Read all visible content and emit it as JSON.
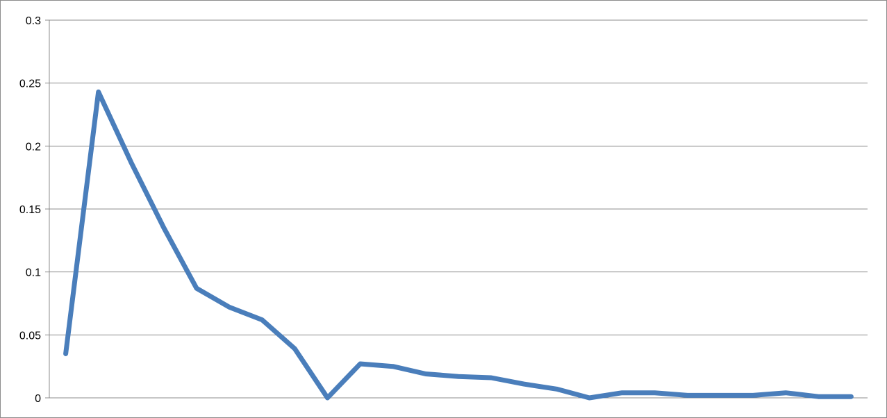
{
  "chart_data": {
    "type": "line",
    "title": "",
    "xlabel": "",
    "ylabel": "",
    "x": [
      1,
      2,
      3,
      4,
      5,
      6,
      7,
      8,
      9,
      10,
      11,
      12,
      13,
      14,
      15,
      16,
      17,
      18,
      19,
      20,
      21,
      22,
      23,
      24,
      25
    ],
    "series": [
      {
        "values": [
          0.035,
          0.243,
          0.187,
          0.135,
          0.087,
          0.072,
          0.062,
          0.039,
          0.0,
          0.027,
          0.025,
          0.019,
          0.017,
          0.016,
          0.011,
          0.007,
          0.0,
          0.004,
          0.004,
          0.002,
          0.002,
          0.002,
          0.004,
          0.001,
          0.001
        ],
        "color": "#4a7ebb"
      }
    ],
    "ylim": [
      0,
      0.3
    ],
    "yticks": [
      0,
      0.05,
      0.1,
      0.15,
      0.2,
      0.25,
      0.3
    ],
    "ytick_labels": [
      "0",
      "0.05",
      "0.1",
      "0.15",
      "0.2",
      "0.25",
      "0.3"
    ],
    "grid": true,
    "legend": "none",
    "colors": {
      "line": "#4a7ebb",
      "grid": "#8c8c8c",
      "axis": "#8c8c8c"
    }
  }
}
